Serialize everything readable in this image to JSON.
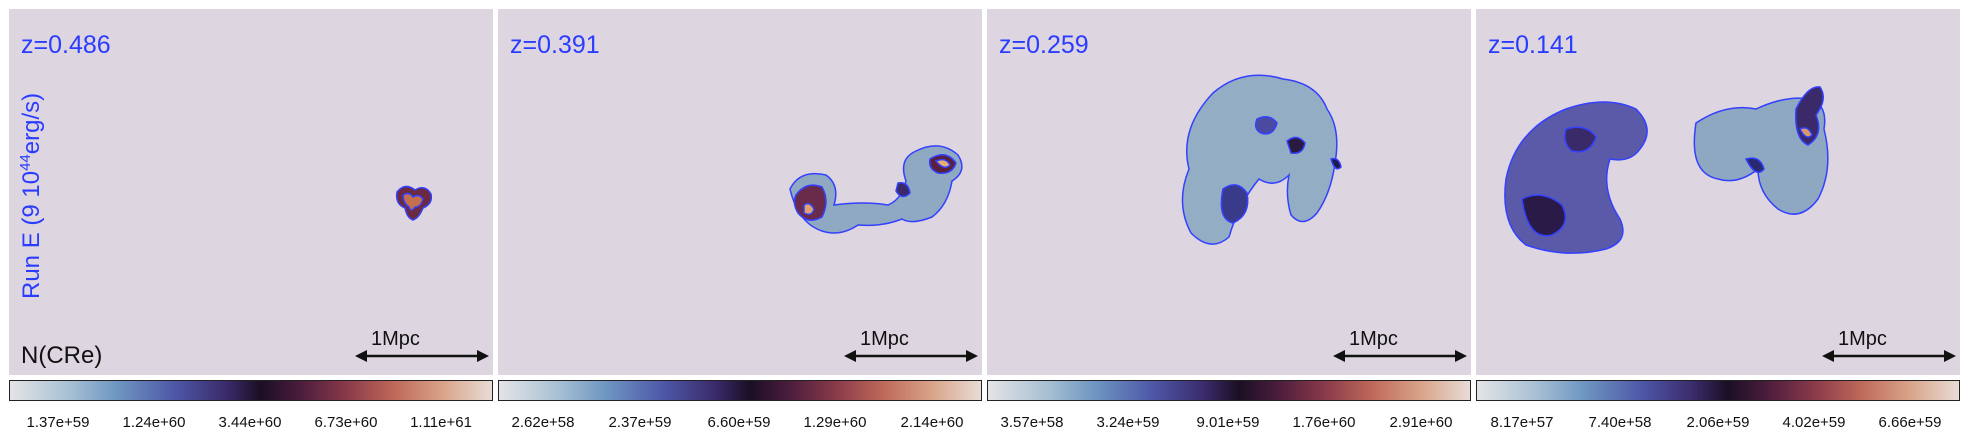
{
  "panels": [
    {
      "redshift": "z=0.486",
      "scale_label": "1Mpc",
      "colorbar_ticks": [
        "1.37e+59",
        "1.24e+60",
        "3.44e+60",
        "6.73e+60",
        "1.11e+61"
      ]
    },
    {
      "redshift": "z=0.391",
      "scale_label": "1Mpc",
      "colorbar_ticks": [
        "2.62e+58",
        "2.37e+59",
        "6.60e+59",
        "1.29e+60",
        "2.14e+60"
      ]
    },
    {
      "redshift": "z=0.259",
      "scale_label": "1Mpc",
      "colorbar_ticks": [
        "3.57e+58",
        "3.24e+59",
        "9.01e+59",
        "1.76e+60",
        "2.91e+60"
      ]
    },
    {
      "redshift": "z=0.141",
      "scale_label": "1Mpc",
      "colorbar_ticks": [
        "8.17e+57",
        "7.40e+58",
        "2.06e+59",
        "4.02e+59",
        "6.66e+59"
      ]
    }
  ],
  "run_label": {
    "prefix": "Run E (9 10",
    "exponent": "44",
    "suffix": "erg/s)"
  },
  "quantity_label": "N(CRe)",
  "colors": {
    "panel_bg": "#ddd5e0",
    "label_blue": "#2a3cff",
    "contour_blue": "#3340ff"
  }
}
